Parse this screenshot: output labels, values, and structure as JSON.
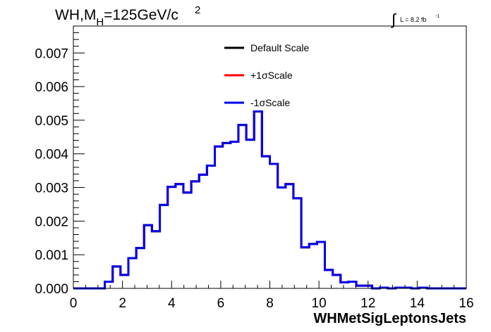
{
  "chart_data": {
    "type": "line",
    "title": "WH,M",
    "title_sub": "H",
    "title_rest": "=125GeV/c",
    "title_sup": "2",
    "lumi_integral": "∫",
    "lumi_text": "L = 8.2 fb",
    "lumi_sup": "-1",
    "xlabel": "WHMetSigLeptonsJets",
    "ylabel": "",
    "xlim": [
      0,
      16
    ],
    "ylim": [
      0,
      0.0078
    ],
    "x_ticks": [
      "0",
      "2",
      "4",
      "6",
      "8",
      "10",
      "12",
      "14",
      "16"
    ],
    "y_ticks": [
      "0.000",
      "0.001",
      "0.002",
      "0.003",
      "0.004",
      "0.005",
      "0.006",
      "0.007"
    ],
    "grid": false,
    "legend_position": "top-center",
    "bin_width": 0.32,
    "bin_edges_start": 0,
    "series": [
      {
        "name": "Default Scale",
        "color": "#000000",
        "values": [
          0,
          0,
          0,
          0,
          0.0002,
          0.00065,
          0.0004,
          0.0009,
          0.0012,
          0.00188,
          0.0017,
          0.00248,
          0.00302,
          0.0031,
          0.00285,
          0.00318,
          0.00338,
          0.00365,
          0.00422,
          0.00432,
          0.00436,
          0.00486,
          0.00442,
          0.00526,
          0.00393,
          0.0037,
          0.003,
          0.0031,
          0.00268,
          0.00122,
          0.00132,
          0.00138,
          0.00055,
          0.0004,
          0.00018,
          0.0002,
          8e-05,
          8e-05,
          0,
          2e-05,
          0,
          2e-05,
          2e-05,
          0,
          2e-05,
          0,
          0,
          0,
          0,
          0
        ]
      },
      {
        "name": "+1σScale",
        "color": "#ff0000",
        "values": [
          0,
          0,
          0,
          0,
          0.0002,
          0.00065,
          0.0004,
          0.0009,
          0.0012,
          0.00188,
          0.0017,
          0.00248,
          0.00302,
          0.0031,
          0.00285,
          0.00318,
          0.00338,
          0.00365,
          0.00422,
          0.00432,
          0.00436,
          0.00486,
          0.00442,
          0.00526,
          0.00393,
          0.0037,
          0.003,
          0.0031,
          0.00268,
          0.00122,
          0.00132,
          0.00138,
          0.00055,
          0.0004,
          0.00018,
          0.0002,
          8e-05,
          8e-05,
          0,
          2e-05,
          0,
          2e-05,
          2e-05,
          0,
          2e-05,
          0,
          0,
          0,
          0,
          0
        ]
      },
      {
        "name": "-1σScale",
        "color": "#0000ee",
        "values": [
          0,
          0,
          0,
          0,
          0.0002,
          0.00065,
          0.0004,
          0.0009,
          0.0012,
          0.00188,
          0.0017,
          0.00248,
          0.00302,
          0.0031,
          0.00285,
          0.00318,
          0.00338,
          0.00365,
          0.00422,
          0.00432,
          0.00436,
          0.00486,
          0.00442,
          0.00526,
          0.00393,
          0.0037,
          0.003,
          0.0031,
          0.00268,
          0.00122,
          0.00132,
          0.00138,
          0.00055,
          0.0004,
          0.00018,
          0.0002,
          8e-05,
          8e-05,
          0,
          2e-05,
          0,
          2e-05,
          2e-05,
          0,
          2e-05,
          0,
          0,
          0,
          0,
          0
        ]
      }
    ]
  }
}
